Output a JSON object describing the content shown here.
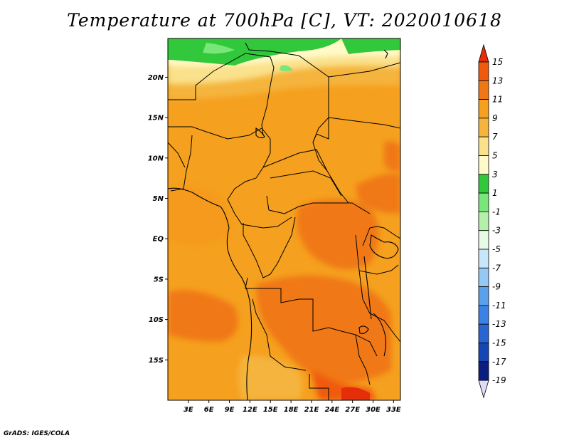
{
  "title": "Temperature at 700hPa [C], VT: 2020010618",
  "credit": "GrADS: IGES/COLA",
  "map": {
    "lat_labels": [
      "20N",
      "15N",
      "10N",
      "5N",
      "EQ",
      "5S",
      "10S",
      "15S"
    ],
    "lat_values": [
      20,
      15,
      10,
      5,
      0,
      -5,
      -10,
      -15
    ],
    "lon_labels": [
      "3E",
      "6E",
      "9E",
      "12E",
      "15E",
      "18E",
      "21E",
      "24E",
      "27E",
      "30E",
      "33E"
    ],
    "lon_values": [
      3,
      6,
      9,
      12,
      15,
      18,
      21,
      24,
      27,
      30,
      33
    ],
    "lat_range": [
      -20,
      24.8
    ],
    "lon_range": [
      0,
      34
    ]
  },
  "colorbar": {
    "labels": [
      "15",
      "13",
      "11",
      "9",
      "7",
      "5",
      "3",
      "1",
      "-1",
      "-3",
      "-5",
      "-7",
      "-9",
      "-11",
      "-13",
      "-15",
      "-17",
      "-19"
    ],
    "colors": [
      "#e62d0a",
      "#f05a0f",
      "#f07814",
      "#f5a01e",
      "#f5b43c",
      "#fae18c",
      "#fffac8",
      "#32c83c",
      "#78e678",
      "#b4f0aa",
      "#e6fae6",
      "#c8e6fa",
      "#96c8f5",
      "#5aa0eb",
      "#3c82e6",
      "#2864d2",
      "#1446b4",
      "#0a1e82",
      "#dcdcf5"
    ]
  }
}
